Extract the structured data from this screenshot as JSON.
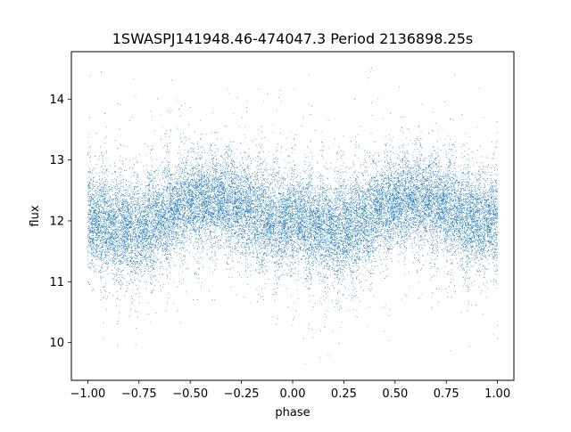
{
  "chart_data": {
    "type": "scatter",
    "title": "1SWASPJ141948.46-474047.3 Period 2136898.25s",
    "xlabel": "phase",
    "ylabel": "flux",
    "xlim": [
      -1.08,
      1.08
    ],
    "ylim": [
      9.38,
      14.78
    ],
    "x_ticks": [
      -1.0,
      -0.75,
      -0.5,
      -0.25,
      0.0,
      0.25,
      0.5,
      0.75,
      1.0
    ],
    "x_tick_labels": [
      "−1.00",
      "−0.75",
      "−0.50",
      "−0.25",
      "0.00",
      "0.25",
      "0.50",
      "0.75",
      "1.00"
    ],
    "y_ticks": [
      10,
      11,
      12,
      13,
      14
    ],
    "y_tick_labels": [
      "10",
      "11",
      "12",
      "13",
      "14"
    ],
    "grid": false,
    "legend": "none",
    "series": [
      {
        "marker_color": "#1f77b4",
        "phase_range": [
          -1.0,
          1.0
        ],
        "point_count_estimate": 40000,
        "flux_profile": {
          "phase": [
            0.0,
            0.05,
            0.1,
            0.15,
            0.2,
            0.25,
            0.3,
            0.35,
            0.4,
            0.45,
            0.5,
            0.55,
            0.6,
            0.65,
            0.7,
            0.75,
            0.8,
            0.85,
            0.9,
            0.95,
            1.0
          ],
          "median_flux": [
            12.05,
            12.0,
            11.95,
            11.9,
            11.85,
            11.85,
            11.9,
            12.0,
            12.15,
            12.25,
            12.3,
            12.3,
            12.35,
            12.35,
            12.3,
            12.2,
            12.15,
            12.05,
            12.0,
            12.0,
            12.05
          ],
          "spread": [
            0.38,
            0.38,
            0.4,
            0.4,
            0.42,
            0.42,
            0.4,
            0.4,
            0.38,
            0.36,
            0.36,
            0.36,
            0.36,
            0.36,
            0.38,
            0.38,
            0.4,
            0.4,
            0.4,
            0.38,
            0.38
          ]
        },
        "flux_extent": [
          9.6,
          14.6
        ]
      }
    ]
  }
}
